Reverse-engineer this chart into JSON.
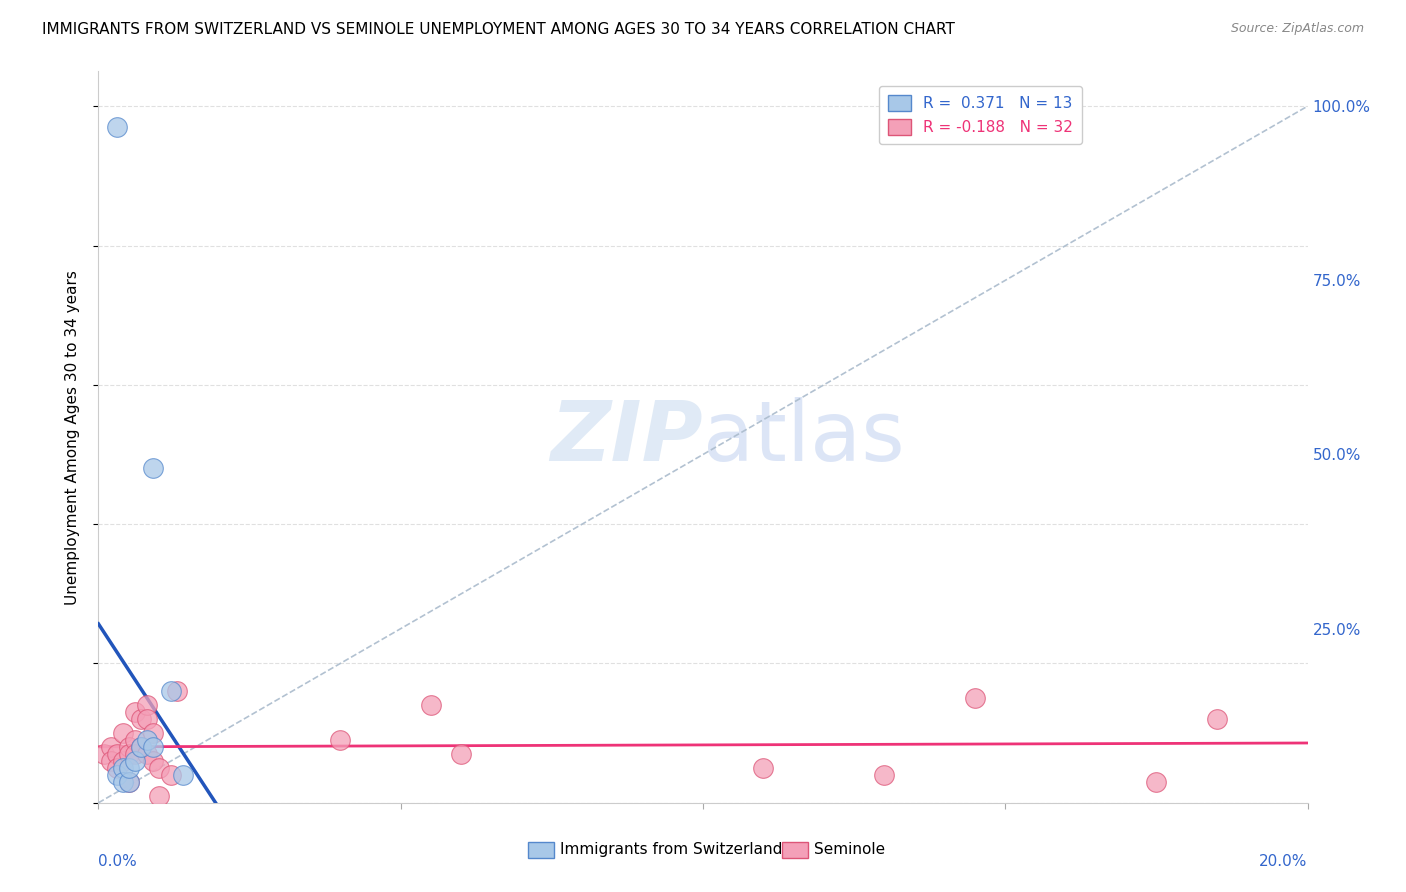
{
  "title": "IMMIGRANTS FROM SWITZERLAND VS SEMINOLE UNEMPLOYMENT AMONG AGES 30 TO 34 YEARS CORRELATION CHART",
  "source": "Source: ZipAtlas.com",
  "ylabel": "Unemployment Among Ages 30 to 34 years",
  "right_yticks": [
    0.0,
    0.25,
    0.5,
    0.75,
    1.0
  ],
  "right_yticklabels": [
    "",
    "25.0%",
    "50.0%",
    "75.0%",
    "100.0%"
  ],
  "xlim": [
    0.0,
    0.2
  ],
  "ylim": [
    0.0,
    1.05
  ],
  "series1_label": "Immigrants from Switzerland",
  "series2_label": "Seminole",
  "series1_color": "#a8c8e8",
  "series2_color": "#f4a0b8",
  "series1_edge_color": "#5588cc",
  "series2_edge_color": "#dd5577",
  "trend1_color": "#2255bb",
  "trend2_color": "#ee3377",
  "ref_line_color": "#aabbcc",
  "grid_color": "#dddddd",
  "legend1_r": "0.371",
  "legend1_n": "13",
  "legend2_r": "-0.188",
  "legend2_n": "32",
  "series1_x": [
    0.003,
    0.003,
    0.004,
    0.004,
    0.005,
    0.005,
    0.006,
    0.007,
    0.008,
    0.009,
    0.009,
    0.012,
    0.014
  ],
  "series1_y": [
    0.97,
    0.04,
    0.05,
    0.03,
    0.03,
    0.05,
    0.06,
    0.08,
    0.09,
    0.08,
    0.48,
    0.16,
    0.04
  ],
  "series2_x": [
    0.001,
    0.002,
    0.002,
    0.003,
    0.003,
    0.004,
    0.004,
    0.005,
    0.005,
    0.005,
    0.006,
    0.006,
    0.006,
    0.007,
    0.007,
    0.008,
    0.008,
    0.008,
    0.009,
    0.009,
    0.01,
    0.01,
    0.012,
    0.013,
    0.04,
    0.055,
    0.06,
    0.11,
    0.13,
    0.145,
    0.175,
    0.185
  ],
  "series2_y": [
    0.07,
    0.08,
    0.06,
    0.07,
    0.05,
    0.06,
    0.1,
    0.08,
    0.07,
    0.03,
    0.09,
    0.07,
    0.13,
    0.12,
    0.08,
    0.14,
    0.12,
    0.07,
    0.1,
    0.06,
    0.01,
    0.05,
    0.04,
    0.16,
    0.09,
    0.14,
    0.07,
    0.05,
    0.04,
    0.15,
    0.03,
    0.12
  ]
}
